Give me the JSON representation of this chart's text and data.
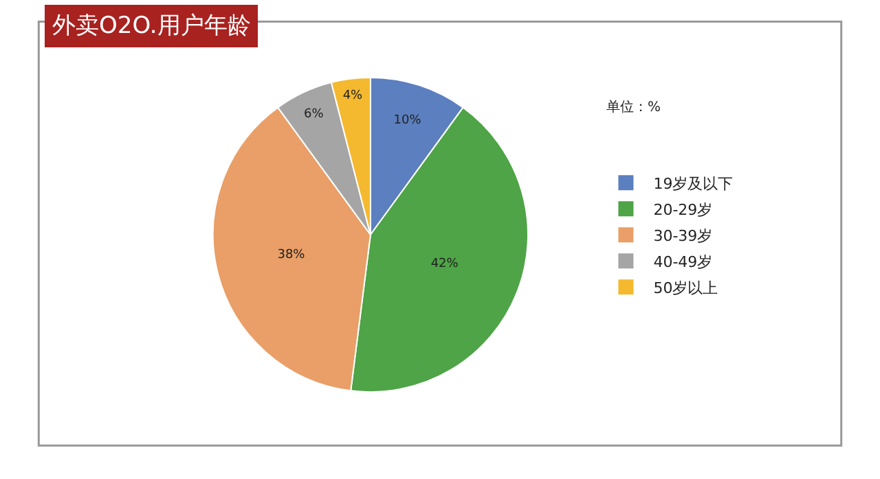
{
  "chart_data": {
    "type": "pie",
    "title": "外卖O2O.用户年龄",
    "categories": [
      "19岁及以下",
      "20-29岁",
      "30-39岁",
      "40-49岁",
      "50岁以上"
    ],
    "values": [
      10,
      42,
      38,
      6,
      4
    ],
    "value_labels": [
      "10%",
      "42%",
      "38%",
      "6%",
      "4%"
    ],
    "colors": [
      "#5b7fbf",
      "#4ea446",
      "#e99f67",
      "#a5a5a5",
      "#f4b92e"
    ],
    "annotations": [
      "单位：%"
    ],
    "legend": "right"
  }
}
